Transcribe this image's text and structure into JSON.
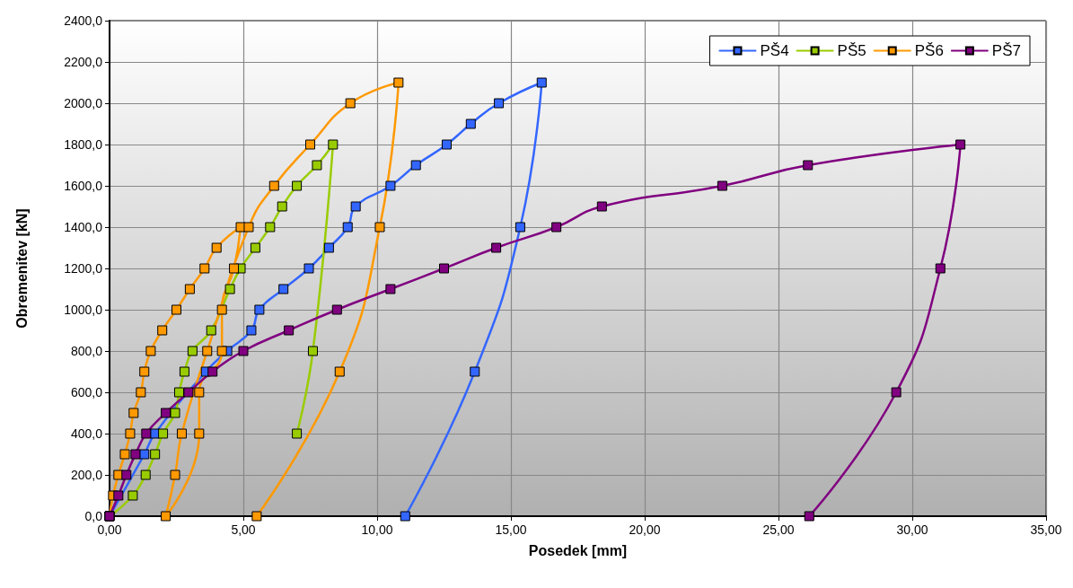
{
  "chart_data": {
    "type": "line",
    "xlabel": "Posedek [mm]",
    "ylabel": "Obremenitev [kN]",
    "xlim": [
      0,
      35
    ],
    "ylim": [
      0,
      2400
    ],
    "xticks": [
      {
        "value": 0,
        "label": "0,00"
      },
      {
        "value": 5,
        "label": "5,00"
      },
      {
        "value": 10,
        "label": "10,00"
      },
      {
        "value": 15,
        "label": "15,00"
      },
      {
        "value": 20,
        "label": "20,00"
      },
      {
        "value": 25,
        "label": "25,00"
      },
      {
        "value": 30,
        "label": "30,00"
      },
      {
        "value": 35,
        "label": "35,00"
      }
    ],
    "yticks": [
      {
        "value": 0,
        "label": "0,0"
      },
      {
        "value": 200,
        "label": "200,0"
      },
      {
        "value": 400,
        "label": "400,0"
      },
      {
        "value": 600,
        "label": "600,0"
      },
      {
        "value": 800,
        "label": "800,0"
      },
      {
        "value": 1000,
        "label": "1000,0"
      },
      {
        "value": 1200,
        "label": "1200,0"
      },
      {
        "value": 1400,
        "label": "1400,0"
      },
      {
        "value": 1600,
        "label": "1600,0"
      },
      {
        "value": 1800,
        "label": "1800,0"
      },
      {
        "value": 2000,
        "label": "2000,0"
      },
      {
        "value": 2200,
        "label": "2200,0"
      },
      {
        "value": 2400,
        "label": "2400,0"
      }
    ],
    "grid": true,
    "legend": "top right",
    "marker": "square",
    "line_style": "solid",
    "series": [
      {
        "name": "PŠ4",
        "color": "#3366ff",
        "x": [
          0,
          1.3,
          1.7,
          3.6,
          4.4,
          5.3,
          5.6,
          6.5,
          7.45,
          8.2,
          8.9,
          9.2,
          10.5,
          11.45,
          12.6,
          13.5,
          14.55,
          16.15,
          15.35,
          13.65,
          11.05
        ],
        "values": [
          0,
          300,
          400,
          700,
          800,
          900,
          1000,
          1100,
          1200,
          1300,
          1400,
          1500,
          1600,
          1700,
          1800,
          1900,
          2000,
          2100,
          1400,
          700,
          0
        ]
      },
      {
        "name": "PŠ5",
        "color": "#99cc00",
        "x": [
          0,
          0.87,
          1.35,
          1.7,
          2.0,
          2.45,
          2.6,
          2.8,
          3.1,
          3.8,
          4.5,
          4.9,
          5.45,
          6.0,
          6.45,
          7.0,
          7.75,
          8.35,
          7.6,
          7.0
        ],
        "values": [
          0,
          100,
          200,
          300,
          400,
          500,
          600,
          700,
          800,
          900,
          1100,
          1200,
          1300,
          1400,
          1500,
          1600,
          1700,
          1800,
          800,
          400
        ]
      },
      {
        "name": "PŠ6",
        "color": "#ff9900",
        "x": [
          0,
          0.13,
          0.33,
          0.57,
          0.77,
          0.9,
          1.17,
          1.3,
          1.54,
          1.97,
          2.5,
          3.0,
          3.55,
          4.0,
          4.9,
          4.65,
          4.2,
          4.2,
          3.35,
          3.35,
          2.1,
          2.45,
          2.7,
          3.65,
          5.2,
          6.15,
          7.5,
          9.0,
          10.8,
          10.1,
          8.6,
          5.5
        ],
        "values": [
          0,
          100,
          200,
          300,
          400,
          500,
          600,
          700,
          800,
          900,
          1000,
          1100,
          1200,
          1300,
          1400,
          1200,
          1000,
          800,
          600,
          400,
          0,
          200,
          400,
          800,
          1400,
          1600,
          1800,
          2000,
          2100,
          1400,
          700,
          0
        ]
      },
      {
        "name": "PŠ7",
        "color": "#800080",
        "x": [
          0,
          0.33,
          0.63,
          0.97,
          1.37,
          2.1,
          2.95,
          3.85,
          5.0,
          6.7,
          8.5,
          10.5,
          12.5,
          14.45,
          16.7,
          18.4,
          22.9,
          26.1,
          31.8,
          31.05,
          29.4,
          26.15
        ],
        "values": [
          0,
          100,
          200,
          300,
          400,
          500,
          600,
          700,
          800,
          900,
          1000,
          1100,
          1200,
          1300,
          1400,
          1500,
          1600,
          1700,
          1800,
          1200,
          600,
          0
        ]
      }
    ]
  }
}
